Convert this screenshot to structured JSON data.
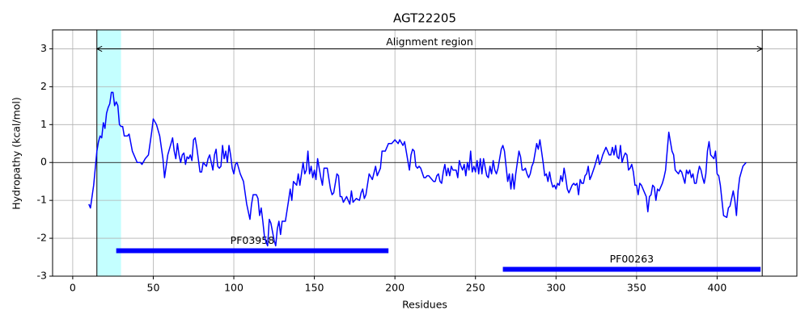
{
  "chart_data": {
    "type": "line",
    "title": "AGT22205",
    "xlabel": "Residues",
    "ylabel": "Hydropathy (kcal/mol)",
    "xlim": [
      -12.5,
      449.5
    ],
    "ylim": [
      -3,
      3.5
    ],
    "xticks": [
      0,
      50,
      100,
      150,
      200,
      250,
      300,
      350,
      400
    ],
    "yticks": [
      -3,
      -2,
      -1,
      0,
      1,
      2,
      3
    ],
    "grid": true,
    "series": [
      {
        "color": "#0000ff",
        "x": [
          10,
          11,
          13,
          15,
          16,
          17,
          18,
          19,
          20,
          21,
          22,
          23,
          24,
          25,
          26,
          27,
          28,
          29,
          30,
          31,
          32,
          34,
          35,
          37,
          40,
          42,
          43,
          45,
          47,
          49,
          50,
          52,
          54,
          56,
          57,
          59,
          61,
          62,
          63,
          64,
          65,
          66,
          67,
          68,
          69,
          70,
          71,
          72,
          73,
          74,
          75,
          76,
          77,
          79,
          80,
          81,
          82,
          83,
          84,
          85,
          86,
          87,
          88,
          89,
          90,
          91,
          92,
          93,
          94,
          95,
          96,
          97,
          98,
          99,
          100,
          101,
          102,
          104,
          106,
          108,
          110,
          111,
          112,
          114,
          115,
          116,
          117,
          118,
          119,
          120,
          121,
          122,
          123,
          125,
          126,
          127,
          128,
          129,
          130,
          132,
          134,
          135,
          136,
          137,
          139,
          140,
          141,
          142,
          143,
          144,
          145,
          146,
          147,
          148,
          149,
          150,
          151,
          152,
          153,
          154,
          155,
          156,
          158,
          160,
          161,
          162,
          164,
          165,
          166,
          167,
          168,
          170,
          172,
          173,
          174,
          176,
          178,
          179,
          180,
          181,
          182,
          184,
          186,
          188,
          189,
          191,
          192,
          194,
          196,
          198,
          200,
          202,
          203,
          205,
          206,
          207,
          208,
          209,
          210,
          211,
          212,
          213,
          214,
          215,
          216,
          218,
          219,
          220,
          221,
          222,
          224,
          225,
          226,
          227,
          228,
          229,
          230,
          231,
          232,
          233,
          234,
          235,
          236,
          237,
          238,
          239,
          240,
          241,
          242,
          243,
          244,
          245,
          246,
          247,
          248,
          249,
          250,
          251,
          252,
          253,
          254,
          255,
          257,
          258,
          259,
          260,
          261,
          262,
          263,
          264,
          266,
          267,
          268,
          269,
          270,
          271,
          272,
          273,
          274,
          275,
          276,
          277,
          278,
          279,
          280,
          281,
          282,
          283,
          284,
          285,
          286,
          288,
          289,
          290,
          291,
          292,
          293,
          294,
          295,
          296,
          297,
          298,
          299,
          300,
          301,
          302,
          303,
          304,
          305,
          306,
          307,
          308,
          309,
          310,
          311,
          312,
          313,
          314,
          315,
          316,
          317,
          318,
          319,
          320,
          321,
          322,
          324,
          326,
          327,
          328,
          329,
          331,
          333,
          334,
          335,
          336,
          337,
          338,
          339,
          340,
          341,
          342,
          343,
          344,
          345,
          346,
          347,
          348,
          349,
          350,
          351,
          352,
          353,
          355,
          356,
          357,
          358,
          359,
          360,
          361,
          362,
          363,
          364,
          365,
          366,
          367,
          368,
          369,
          370,
          371,
          372,
          373,
          374,
          375,
          376,
          377,
          378,
          379,
          380,
          381,
          382,
          383,
          384,
          385,
          386,
          387,
          388,
          389,
          390,
          391,
          392,
          393,
          394,
          395,
          396,
          397,
          398,
          399,
          400,
          401,
          402,
          403,
          404,
          406,
          407,
          408,
          410,
          411,
          412,
          413,
          414,
          416,
          418
        ],
        "values": [
          -1.1,
          -1.2,
          -0.6,
          0.3,
          0.55,
          0.7,
          0.65,
          1.05,
          0.9,
          1.3,
          1.45,
          1.55,
          1.85,
          1.85,
          1.5,
          1.6,
          1.5,
          1.0,
          0.95,
          0.95,
          0.7,
          0.7,
          0.75,
          0.3,
          0.0,
          0.0,
          -0.05,
          0.1,
          0.2,
          0.8,
          1.15,
          1.0,
          0.7,
          0.1,
          -0.4,
          0.2,
          0.5,
          0.65,
          0.3,
          0.1,
          0.5,
          0.2,
          0.0,
          0.2,
          0.25,
          -0.05,
          0.15,
          0.1,
          0.2,
          0.05,
          0.6,
          0.65,
          0.4,
          -0.25,
          -0.25,
          0.0,
          -0.05,
          -0.1,
          0.1,
          0.2,
          0.0,
          -0.2,
          0.2,
          0.35,
          -0.1,
          -0.15,
          -0.1,
          0.45,
          0.1,
          0.3,
          0.0,
          0.45,
          0.2,
          -0.15,
          -0.3,
          -0.05,
          0.0,
          -0.3,
          -0.5,
          -1.1,
          -1.5,
          -1.1,
          -0.85,
          -0.85,
          -0.95,
          -1.4,
          -1.2,
          -1.55,
          -1.95,
          -2.1,
          -2.2,
          -1.5,
          -1.6,
          -2.05,
          -2.2,
          -1.75,
          -1.55,
          -1.9,
          -1.55,
          -1.55,
          -1.0,
          -0.7,
          -1.0,
          -0.5,
          -0.6,
          -0.3,
          -0.6,
          -0.3,
          0.0,
          -0.3,
          -0.2,
          0.3,
          -0.3,
          -0.1,
          -0.4,
          -0.2,
          -0.45,
          0.1,
          -0.15,
          -0.4,
          -0.6,
          -0.15,
          -0.15,
          -0.7,
          -0.85,
          -0.8,
          -0.3,
          -0.35,
          -0.9,
          -0.9,
          -1.05,
          -0.9,
          -1.1,
          -0.75,
          -1.05,
          -0.95,
          -1.0,
          -0.8,
          -0.7,
          -0.95,
          -0.85,
          -0.3,
          -0.45,
          -0.1,
          -0.35,
          -0.15,
          0.3,
          0.3,
          0.5,
          0.5,
          0.6,
          0.5,
          0.6,
          0.45,
          0.55,
          0.3,
          0.05,
          -0.2,
          0.2,
          0.35,
          0.3,
          -0.1,
          -0.15,
          -0.1,
          -0.15,
          -0.4,
          -0.4,
          -0.35,
          -0.35,
          -0.4,
          -0.5,
          -0.5,
          -0.35,
          -0.3,
          -0.5,
          -0.55,
          -0.25,
          -0.05,
          -0.35,
          -0.15,
          -0.35,
          -0.1,
          -0.2,
          -0.2,
          -0.2,
          -0.4,
          0.05,
          -0.1,
          -0.2,
          -0.05,
          -0.35,
          0.0,
          -0.2,
          0.3,
          -0.25,
          -0.1,
          -0.25,
          0.05,
          -0.3,
          0.1,
          -0.3,
          0.1,
          -0.35,
          -0.4,
          -0.1,
          -0.3,
          0.05,
          -0.2,
          -0.3,
          -0.15,
          0.35,
          0.45,
          0.3,
          -0.1,
          -0.5,
          -0.3,
          -0.7,
          -0.3,
          -0.7,
          -0.3,
          0.0,
          0.3,
          0.15,
          -0.2,
          -0.2,
          -0.15,
          -0.3,
          -0.4,
          -0.3,
          -0.1,
          0.0,
          0.5,
          0.35,
          0.6,
          0.3,
          0.0,
          -0.35,
          -0.3,
          -0.5,
          -0.25,
          -0.5,
          -0.65,
          -0.6,
          -0.7,
          -0.55,
          -0.6,
          -0.35,
          -0.5,
          -0.15,
          -0.4,
          -0.7,
          -0.8,
          -0.7,
          -0.6,
          -0.55,
          -0.6,
          -0.55,
          -0.85,
          -0.45,
          -0.55,
          -0.55,
          -0.35,
          -0.3,
          -0.1,
          -0.45,
          -0.35,
          -0.1,
          0.2,
          -0.05,
          0.05,
          0.2,
          0.4,
          0.2,
          0.2,
          0.4,
          0.2,
          0.45,
          0.15,
          0.1,
          0.45,
          0.0,
          0.15,
          0.25,
          0.2,
          -0.2,
          -0.15,
          -0.05,
          -0.25,
          -0.6,
          -0.6,
          -0.85,
          -0.55,
          -0.6,
          -0.8,
          -0.9,
          -1.3,
          -0.9,
          -0.85,
          -0.6,
          -0.65,
          -1.0,
          -0.7,
          -0.75,
          -0.65,
          -0.55,
          -0.4,
          -0.2,
          0.3,
          0.8,
          0.55,
          0.3,
          0.2,
          -0.2,
          -0.25,
          -0.3,
          -0.2,
          -0.25,
          -0.4,
          -0.55,
          -0.2,
          -0.3,
          -0.2,
          -0.4,
          -0.3,
          -0.55,
          -0.55,
          -0.3,
          -0.1,
          -0.2,
          -0.4,
          -0.55,
          -0.3,
          0.3,
          0.55,
          0.2,
          0.15,
          0.1,
          0.3,
          -0.3,
          -0.35,
          -0.6,
          -1.0,
          -1.4,
          -1.45,
          -1.2,
          -1.15,
          -0.75,
          -1.0,
          -1.4,
          -0.75,
          -0.4,
          -0.1,
          0.0
        ]
      }
    ],
    "highlight": {
      "start": 15,
      "end": 30,
      "color": "#c4ffff"
    },
    "vlines": [
      15,
      428
    ],
    "hline": 0,
    "alignment": {
      "label": "Alignment region",
      "start": 15,
      "end": 428,
      "y": 3
    },
    "domains": [
      {
        "label": "PF03958",
        "start": 27,
        "end": 196,
        "y": -2.33,
        "color": "#0000ff"
      },
      {
        "label": "PF00263",
        "start": 267,
        "end": 427,
        "y": -2.82,
        "color": "#0000ff"
      }
    ]
  }
}
